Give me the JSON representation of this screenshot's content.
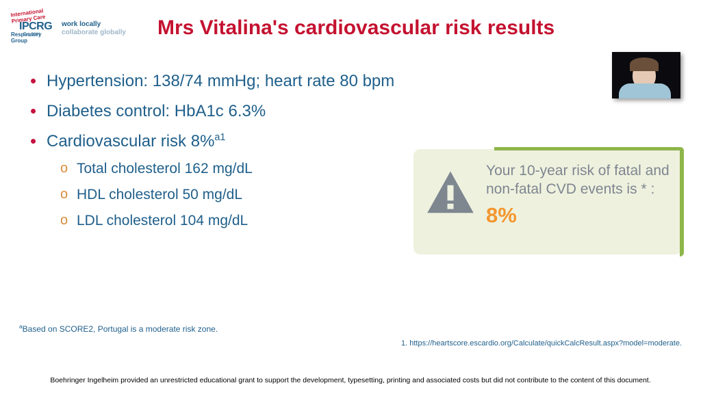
{
  "colors": {
    "title": "#c41230",
    "body_text": "#1f5f8b",
    "bullet_dot": "#c4123f",
    "subbullet_marker": "#d98b3a",
    "callout_bg": "#eef1de",
    "callout_accent": "#8eb64a",
    "callout_text": "#7e8690",
    "callout_pct": "#f3962f",
    "warn_fill": "#7e8690",
    "footnote": "#1f5f8b",
    "ref": "#1f5f8b"
  },
  "logo": {
    "acronym": "IPCRG",
    "est": "Est. 2001",
    "arc_top": "International Primary Care",
    "arc_bottom": "Respiratory Group",
    "tag_line1": "work locally",
    "tag_line2": "collaborate globally"
  },
  "title": "Mrs Vitalina's cardiovascular risk results",
  "bullets": [
    {
      "label": "Hypertension:",
      "value": "138/74 mmHg; heart rate 80 bpm"
    },
    {
      "label": "Diabetes control:",
      "value": "HbA1c 6.3%"
    },
    {
      "label": "Cardiovascular risk",
      "value": "8%",
      "sup": "a1",
      "children": [
        "Total cholesterol 162 mg/dL",
        "HDL cholesterol 50 mg/dL",
        "LDL cholesterol 104 mg/dL"
      ]
    }
  ],
  "callout": {
    "message": "Your 10-year risk of fatal and non-fatal CVD events is * :",
    "percent": "8%"
  },
  "footnote_a": "Based on SCORE2, Portugal is a moderate risk zone.",
  "footnote_a_sup": "a",
  "reference": "1. https://heartscore.escardio.org/Calculate/quickCalcResult.aspx?model=moderate.",
  "disclaimer": "Boehringer Ingelheim provided an unrestricted educational grant to support the development, typesetting, printing and associated costs but did not contribute to the content of this document."
}
